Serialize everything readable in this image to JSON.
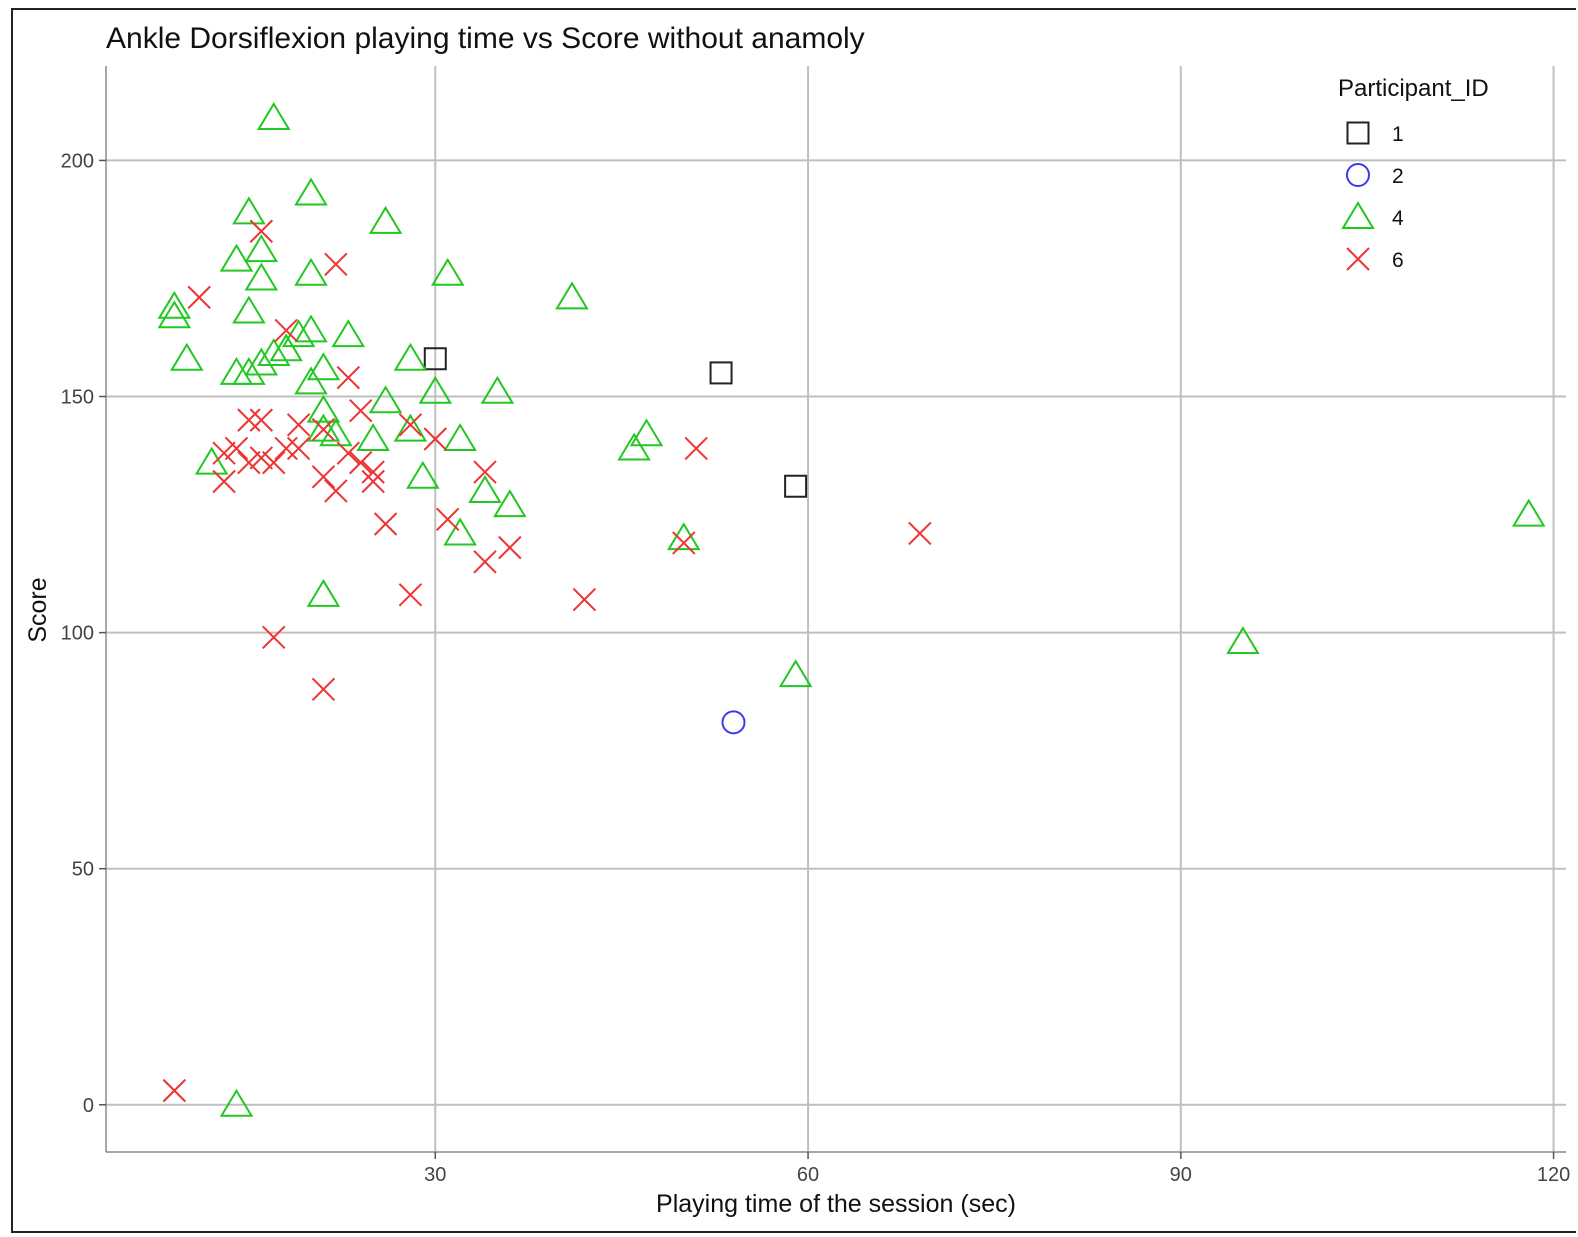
{
  "chart_data": {
    "type": "scatter",
    "title": "Ankle Dorsiflexion playing time vs Score without anamoly",
    "xlabel": "Playing time of the session (sec)",
    "ylabel": "Score",
    "xlim": [
      3.5,
      121
    ],
    "ylim": [
      -10,
      220
    ],
    "xticks": [
      30,
      60,
      90,
      120
    ],
    "yticks": [
      0,
      50,
      100,
      150,
      200
    ],
    "grid": true,
    "legend": {
      "title": "Participant_ID",
      "position": "top-right"
    },
    "series": [
      {
        "name": "1",
        "marker": "square",
        "color": "#222222",
        "points": [
          [
            30,
            158
          ],
          [
            53,
            155
          ],
          [
            59,
            131
          ]
        ]
      },
      {
        "name": "2",
        "marker": "circle",
        "color": "#3a3af0",
        "points": [
          [
            54,
            81
          ]
        ]
      },
      {
        "name": "4",
        "marker": "triangle",
        "color": "#22c722",
        "points": [
          [
            17,
            209
          ],
          [
            20,
            193
          ],
          [
            15,
            189
          ],
          [
            26,
            187
          ],
          [
            16,
            181
          ],
          [
            14,
            179
          ],
          [
            20,
            176
          ],
          [
            16,
            175
          ],
          [
            31,
            176
          ],
          [
            9,
            169
          ],
          [
            9,
            167
          ],
          [
            15,
            168
          ],
          [
            41,
            171
          ],
          [
            23,
            163
          ],
          [
            20,
            164
          ],
          [
            19,
            163
          ],
          [
            18,
            160
          ],
          [
            17,
            159
          ],
          [
            10,
            158
          ],
          [
            16,
            157
          ],
          [
            15,
            155
          ],
          [
            14,
            155
          ],
          [
            21,
            156
          ],
          [
            28,
            158
          ],
          [
            20,
            153
          ],
          [
            30,
            151
          ],
          [
            35,
            151
          ],
          [
            26,
            149
          ],
          [
            21,
            147
          ],
          [
            21,
            143
          ],
          [
            22,
            142
          ],
          [
            28,
            143
          ],
          [
            25,
            141
          ],
          [
            32,
            141
          ],
          [
            47,
            142
          ],
          [
            46,
            139
          ],
          [
            12,
            136
          ],
          [
            29,
            133
          ],
          [
            34,
            130
          ],
          [
            36,
            127
          ],
          [
            32,
            121
          ],
          [
            50,
            120
          ],
          [
            118,
            125
          ],
          [
            21,
            108
          ],
          [
            95,
            98
          ],
          [
            59,
            91
          ],
          [
            14,
            0
          ]
        ]
      },
      {
        "name": "6",
        "marker": "cross",
        "color": "#ee3333",
        "points": [
          [
            16,
            185
          ],
          [
            22,
            178
          ],
          [
            11,
            171
          ],
          [
            18,
            164
          ],
          [
            23,
            154
          ],
          [
            24,
            147
          ],
          [
            15,
            145
          ],
          [
            16,
            145
          ],
          [
            19,
            144
          ],
          [
            21,
            143
          ],
          [
            28,
            144
          ],
          [
            30,
            141
          ],
          [
            14,
            139
          ],
          [
            13,
            138
          ],
          [
            16,
            137
          ],
          [
            17,
            136
          ],
          [
            15,
            136
          ],
          [
            18,
            139
          ],
          [
            19,
            139
          ],
          [
            23,
            138
          ],
          [
            24,
            136
          ],
          [
            25,
            134
          ],
          [
            25,
            132
          ],
          [
            13,
            132
          ],
          [
            21,
            133
          ],
          [
            22,
            130
          ],
          [
            34,
            134
          ],
          [
            51,
            139
          ],
          [
            26,
            123
          ],
          [
            31,
            124
          ],
          [
            36,
            118
          ],
          [
            34,
            115
          ],
          [
            50,
            119
          ],
          [
            69,
            121
          ],
          [
            42,
            107
          ],
          [
            28,
            108
          ],
          [
            17,
            99
          ],
          [
            21,
            88
          ],
          [
            9,
            3
          ]
        ]
      }
    ]
  }
}
